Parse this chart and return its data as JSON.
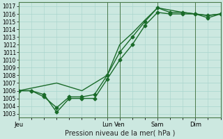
{
  "xlabel": "Pression niveau de la mer( hPa )",
  "bg_color": "#cce8e0",
  "grid_color": "#a8d4cc",
  "line_color": "#1a6b2a",
  "spine_color": "#4a7a4a",
  "vline_color": "#4a7a4a",
  "ylim": [
    1002.5,
    1017.5
  ],
  "yticks": [
    1003,
    1004,
    1005,
    1006,
    1007,
    1008,
    1009,
    1010,
    1011,
    1012,
    1013,
    1014,
    1015,
    1016,
    1017
  ],
  "xlim": [
    0,
    96
  ],
  "day_labels": [
    "Jeu",
    "Lun",
    "Ven",
    "Sam",
    "Dim"
  ],
  "day_positions": [
    0,
    42,
    48,
    66,
    84
  ],
  "vline_positions": [
    42,
    48,
    66,
    84
  ],
  "series1_x": [
    0,
    6,
    12,
    18,
    24,
    30,
    36,
    42,
    48,
    54,
    60,
    66,
    72,
    78,
    84,
    90,
    96
  ],
  "series1_y": [
    1006,
    1006,
    1005.5,
    1003.2,
    1005,
    1005,
    1005,
    1007.5,
    1010,
    1012,
    1014.5,
    1016.2,
    1016.0,
    1016.0,
    1016.0,
    1015.5,
    1016.0
  ],
  "series2_x": [
    0,
    6,
    12,
    18,
    24,
    30,
    36,
    42,
    48,
    54,
    60,
    66,
    72,
    78,
    84,
    90,
    96
  ],
  "series2_y": [
    1006,
    1006,
    1005.2,
    1003.8,
    1005.2,
    1005.2,
    1005.5,
    1008.0,
    1011.0,
    1013.0,
    1015.0,
    1016.8,
    1016.2,
    1016.2,
    1016.0,
    1015.8,
    1016.0
  ],
  "series3_x": [
    0,
    18,
    30,
    42,
    48,
    54,
    60,
    66,
    72,
    78,
    84,
    90,
    96
  ],
  "series3_y": [
    1006,
    1007,
    1006,
    1008,
    1012,
    1013.5,
    1015.2,
    1016.8,
    1016.5,
    1016.2,
    1016.0,
    1015.8,
    1016.0
  ],
  "marker_style": "D",
  "marker_size": 2.5,
  "linewidth": 1.0,
  "ytick_fontsize": 5.5,
  "xtick_fontsize": 6.0,
  "xlabel_fontsize": 7.0
}
